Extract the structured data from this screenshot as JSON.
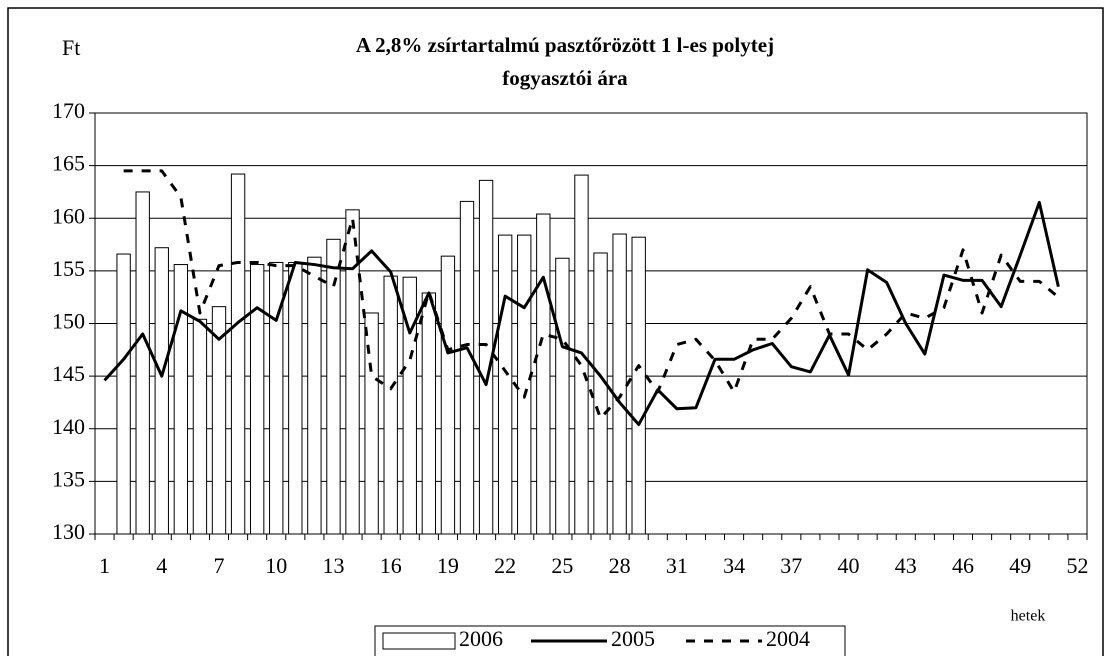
{
  "chart_data": {
    "type": "bar-line",
    "title": [
      "A 2,8% zsírtartalmú pasztőrözött 1 l-es polytej",
      "fogyasztói  ára"
    ],
    "y_label": "Ft",
    "x_label": "hetek",
    "categories": [
      1,
      null,
      null,
      4,
      null,
      null,
      7,
      null,
      null,
      10,
      null,
      null,
      13,
      null,
      null,
      16,
      null,
      null,
      19,
      null,
      null,
      22,
      null,
      null,
      25,
      null,
      null,
      28,
      null,
      null,
      31,
      null,
      null,
      34,
      null,
      null,
      37,
      null,
      null,
      40,
      null,
      null,
      43,
      null,
      null,
      46,
      null,
      null,
      49,
      null,
      null,
      52
    ],
    "ylim": [
      130,
      170
    ],
    "yticks": [
      130,
      135,
      140,
      145,
      150,
      155,
      160,
      165,
      170
    ],
    "grid": true,
    "legend": "bottom",
    "series": [
      {
        "name": "2006",
        "type": "bar",
        "color": "#ffffff",
        "values": [
          null,
          156.6,
          162.5,
          157.2,
          155.6,
          150.4,
          151.6,
          164.2,
          155.6,
          155.8,
          155.8,
          156.3,
          158.0,
          160.8,
          151.0,
          154.5,
          154.4,
          152.9,
          156.4,
          161.6,
          163.6,
          158.4,
          158.4,
          160.4,
          156.2,
          164.1,
          156.7,
          158.5,
          158.2,
          null,
          null,
          null,
          null,
          null,
          null,
          null,
          null,
          null,
          null,
          null,
          null,
          null,
          null,
          null,
          null,
          null,
          null,
          null,
          null,
          null,
          null,
          null
        ]
      },
      {
        "name": "2005",
        "type": "line",
        "color": "#000000",
        "values": [
          144.6,
          146.6,
          149.0,
          145.0,
          151.2,
          150.2,
          148.5,
          150.1,
          151.5,
          150.3,
          155.8,
          155.6,
          155.3,
          155.2,
          156.9,
          154.9,
          149.1,
          152.9,
          147.2,
          147.7,
          144.2,
          152.6,
          151.5,
          154.4,
          147.8,
          147.2,
          145.0,
          142.5,
          140.4,
          143.7,
          141.9,
          142.0,
          146.6,
          146.6,
          147.5,
          148.1,
          145.9,
          145.4,
          148.9,
          145.1,
          155.1,
          153.9,
          150.0,
          147.1,
          154.6,
          154.1,
          154.1,
          151.6,
          156.5,
          161.5,
          153.5,
          null
        ]
      },
      {
        "name": "2004",
        "type": "dashed-line",
        "color": "#000000",
        "values": [
          null,
          164.5,
          164.5,
          164.5,
          162.0,
          151.0,
          155.5,
          155.8,
          155.8,
          155.5,
          155.5,
          154.5,
          153.5,
          160.0,
          145.0,
          143.8,
          146.5,
          153.0,
          147.5,
          148.0,
          148.0,
          145.5,
          143.0,
          149.0,
          148.5,
          146.0,
          141.0,
          143.0,
          146.0,
          143.5,
          148.0,
          148.5,
          146.5,
          143.5,
          148.5,
          148.5,
          150.5,
          153.5,
          149.0,
          149.0,
          147.5,
          149.0,
          151.0,
          150.5,
          151.5,
          157.0,
          151.0,
          156.5,
          154.0,
          154.0,
          152.5,
          null
        ]
      }
    ]
  }
}
